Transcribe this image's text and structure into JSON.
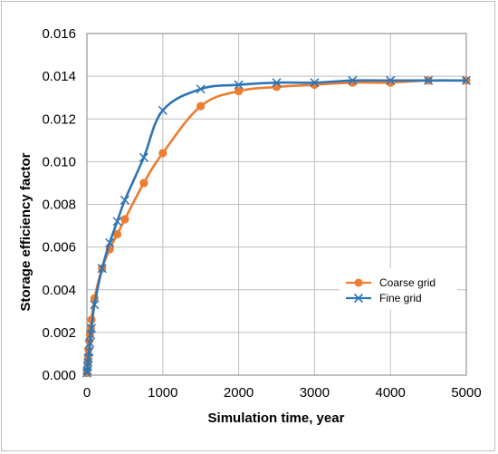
{
  "chart_data": {
    "type": "line",
    "xlabel": "Simulation time, year",
    "ylabel": "Storage efficiency factor",
    "xlim": [
      0,
      5000
    ],
    "ylim": [
      0,
      0.016
    ],
    "x_ticks": [
      0,
      1000,
      2000,
      3000,
      4000,
      5000
    ],
    "x_tick_labels": [
      "0",
      "1000",
      "2000",
      "3000",
      "4000",
      "5000"
    ],
    "y_ticks": [
      0,
      0.002,
      0.004,
      0.006,
      0.008,
      0.01,
      0.012,
      0.014,
      0.016
    ],
    "y_tick_labels": [
      "0.000",
      "0.002",
      "0.004",
      "0.006",
      "0.008",
      "0.010",
      "0.012",
      "0.014",
      "0.016"
    ],
    "grid": true,
    "legend_position": "right",
    "series": [
      {
        "name": "Coarse grid",
        "color": "#ED7D31",
        "marker": "circle",
        "points": [
          [
            0,
            0.0001
          ],
          [
            5,
            0.0003
          ],
          [
            10,
            0.0006
          ],
          [
            15,
            0.0009
          ],
          [
            20,
            0.0012
          ],
          [
            30,
            0.0016
          ],
          [
            40,
            0.0019
          ],
          [
            50,
            0.0022
          ],
          [
            60,
            0.0026
          ],
          [
            100,
            0.0036
          ],
          [
            200,
            0.005
          ],
          [
            300,
            0.0059
          ],
          [
            400,
            0.0066
          ],
          [
            500,
            0.0073
          ],
          [
            750,
            0.009
          ],
          [
            1000,
            0.0104
          ],
          [
            1500,
            0.0126
          ],
          [
            2000,
            0.0133
          ],
          [
            2500,
            0.0135
          ],
          [
            3000,
            0.0136
          ],
          [
            3500,
            0.0137
          ],
          [
            4000,
            0.0137
          ],
          [
            4500,
            0.0138
          ],
          [
            5000,
            0.0138
          ]
        ]
      },
      {
        "name": "Fine grid",
        "color": "#2E75B6",
        "marker": "x",
        "points": [
          [
            0,
            0.0001
          ],
          [
            5,
            0.0002
          ],
          [
            10,
            0.0004
          ],
          [
            15,
            0.0006
          ],
          [
            20,
            0.0008
          ],
          [
            30,
            0.0011
          ],
          [
            40,
            0.0015
          ],
          [
            50,
            0.0019
          ],
          [
            60,
            0.0022
          ],
          [
            100,
            0.0033
          ],
          [
            200,
            0.005
          ],
          [
            300,
            0.0062
          ],
          [
            400,
            0.0072
          ],
          [
            500,
            0.0082
          ],
          [
            750,
            0.0102
          ],
          [
            1000,
            0.0124
          ],
          [
            1500,
            0.0134
          ],
          [
            2000,
            0.0136
          ],
          [
            2500,
            0.0137
          ],
          [
            3000,
            0.0137
          ],
          [
            3500,
            0.0138
          ],
          [
            4000,
            0.0138
          ],
          [
            4500,
            0.0138
          ],
          [
            5000,
            0.0138
          ]
        ]
      }
    ]
  }
}
